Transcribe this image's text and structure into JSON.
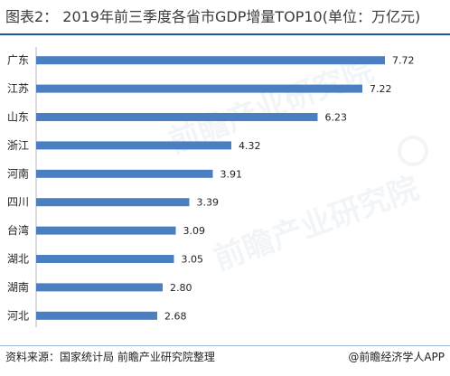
{
  "header": {
    "title": "图表2：  2019年前三季度各省市GDP增量TOP10(单位：万亿元)"
  },
  "chart_data": {
    "type": "bar",
    "orientation": "horizontal",
    "categories": [
      "广东",
      "江苏",
      "山东",
      "浙江",
      "河南",
      "四川",
      "台湾",
      "湖北",
      "湖南",
      "河北"
    ],
    "values": [
      7.72,
      7.22,
      6.23,
      4.32,
      3.91,
      3.39,
      3.09,
      3.05,
      2.8,
      2.68
    ],
    "value_labels": [
      "7.72",
      "7.22",
      "6.23",
      "4.32",
      "3.91",
      "3.39",
      "3.09",
      "3.05",
      "2.80",
      "2.68"
    ],
    "title": "2019年前三季度各省市GDP增量TOP10(单位：万亿元)",
    "xlim": [
      0,
      8.6
    ],
    "grid": false,
    "bar_color": "#4a7fc1"
  },
  "footer": {
    "source": "资料来源：国家统计局 前瞻产业研究院整理",
    "brand": "@前瞻经济学人APP"
  },
  "watermark": {
    "text": "前瞻产业研究院"
  }
}
